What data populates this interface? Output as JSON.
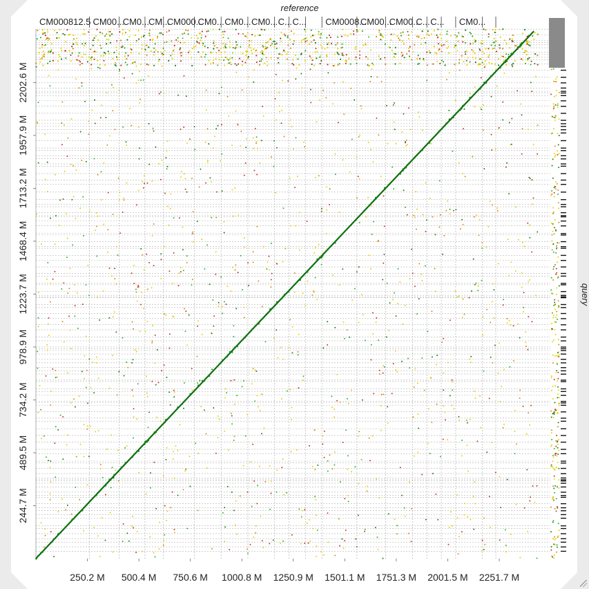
{
  "chart_data": {
    "type": "scatter",
    "title": "reference",
    "xlabel": "",
    "ylabel": "query",
    "x_ticks": [
      "250.2 M",
      "500.4 M",
      "750.6 M",
      "1000.8 M",
      "1250.9 M",
      "1501.1 M",
      "1751.3 M",
      "2001.5 M",
      "2251.7 M"
    ],
    "x_tick_values": [
      250.2,
      500.4,
      750.6,
      1000.8,
      1250.9,
      1501.1,
      1751.3,
      2001.5,
      2251.7
    ],
    "y_ticks": [
      "244.7 M",
      "489.5 M",
      "734.2 M",
      "978.9 M",
      "1223.7 M",
      "1468.4 M",
      "1713.2 M",
      "1957.9 M",
      "2202.6 M"
    ],
    "y_tick_values": [
      244.7,
      489.5,
      734.2,
      978.9,
      1223.7,
      1468.4,
      1713.2,
      1957.9,
      2202.6
    ],
    "xlim": [
      0,
      2500
    ],
    "ylim": [
      0,
      2450
    ],
    "reference_sequences": [
      {
        "label": "CM000812.5",
        "start": 0,
        "end": 260
      },
      {
        "label": "CM00...",
        "start": 260,
        "end": 405
      },
      {
        "label": "CM0...",
        "start": 405,
        "end": 530
      },
      {
        "label": "CM...",
        "start": 530,
        "end": 620
      },
      {
        "label": "CM000...",
        "start": 620,
        "end": 770
      },
      {
        "label": "CM0...",
        "start": 770,
        "end": 900
      },
      {
        "label": "CM0...",
        "start": 900,
        "end": 1030
      },
      {
        "label": "CM0...",
        "start": 1030,
        "end": 1160
      },
      {
        "label": "C...",
        "start": 1160,
        "end": 1230
      },
      {
        "label": "C...",
        "start": 1230,
        "end": 1310
      },
      {
        "label": "",
        "start": 1310,
        "end": 1390
      },
      {
        "label": "CM0008...",
        "start": 1390,
        "end": 1560
      },
      {
        "label": "CM00...",
        "start": 1560,
        "end": 1700
      },
      {
        "label": "CM00...",
        "start": 1700,
        "end": 1830
      },
      {
        "label": "C...",
        "start": 1830,
        "end": 1900
      },
      {
        "label": "C...",
        "start": 1900,
        "end": 1970
      },
      {
        "label": "",
        "start": 1970,
        "end": 2040
      },
      {
        "label": "CM0...",
        "start": 2040,
        "end": 2170
      },
      {
        "label": "",
        "start": 2170,
        "end": 2235
      }
    ],
    "main_alignment": {
      "x": [
        0,
        2420
      ],
      "y": [
        0,
        2440
      ]
    },
    "grid": true,
    "colors": {
      "main_diagonal": "#0b6e0b",
      "hits_dark": "#1a7f1a",
      "hits_green": "#2db52d",
      "hits_yellow": "#e8d000",
      "hits_orange": "#d98a1a",
      "hits_red": "#c0392b",
      "gridline": "#b0b0b0",
      "side_bar": "#8a8a8a",
      "frame": "#ebebeb"
    }
  }
}
